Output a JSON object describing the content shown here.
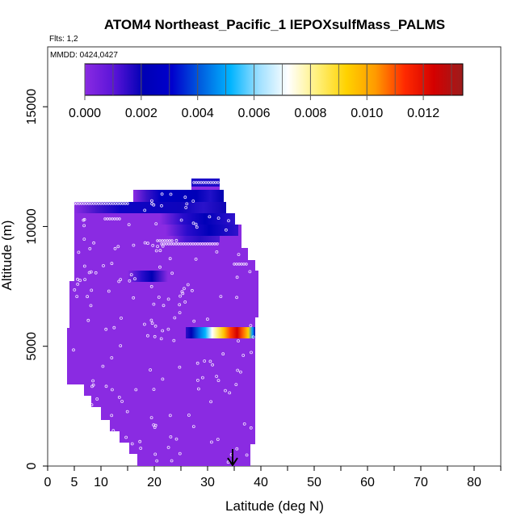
{
  "chart_data": {
    "type": "heatmap",
    "title": "ATOM4 Northeast_Pacific_1 IEPOXsulfMass_PALMS",
    "subtitle_flights": "Flts: 1,2",
    "subtitle_dates": "MMDD: 0424,0427",
    "xlabel": "Latitude (deg N)",
    "ylabel": "Altitude (m)",
    "xlim": [
      0,
      85
    ],
    "ylim": [
      0,
      17500
    ],
    "x_tick_labels": [
      "0",
      "5",
      "10",
      "20",
      "30",
      "40",
      "50",
      "60",
      "70",
      "80"
    ],
    "x_tick_values": [
      0,
      5,
      10,
      20,
      30,
      40,
      50,
      60,
      70,
      80
    ],
    "y_tick_labels": [
      "0",
      "5000",
      "10000",
      "15000"
    ],
    "y_tick_values": [
      0,
      5000,
      10000,
      15000
    ],
    "colorbar": {
      "range": [
        0,
        0.0134
      ],
      "tick_labels": [
        "0.000",
        "0.002",
        "0.004",
        "0.006",
        "0.008",
        "0.010",
        "0.012"
      ],
      "tick_values": [
        0,
        0.002,
        0.004,
        0.006,
        0.008,
        0.01,
        0.012
      ],
      "colors": [
        "#8a2be2",
        "#5a14d8",
        "#0000b4",
        "#0000cd",
        "#0060e0",
        "#00b4ff",
        "#a0e0ff",
        "#ffffff",
        "#fff07a",
        "#ffd200",
        "#ff9a00",
        "#ff2a00",
        "#d40000",
        "#9c1c1c"
      ]
    },
    "background_value": 0.0,
    "marker": {
      "latitude": 34.7,
      "altitude": 600
    },
    "features": [
      {
        "lat": [
          16,
          33
        ],
        "alt": [
          11300,
          11900
        ],
        "value": 0.0021
      },
      {
        "lat": [
          23,
          32
        ],
        "alt": [
          10300,
          11300
        ],
        "value": 0.0022
      },
      {
        "lat": [
          17,
          25
        ],
        "alt": [
          8100,
          8500
        ],
        "value": 0.0021
      },
      {
        "lat": [
          26,
          39
        ],
        "alt": [
          5500,
          5900
        ],
        "value": 0.0093
      }
    ]
  }
}
